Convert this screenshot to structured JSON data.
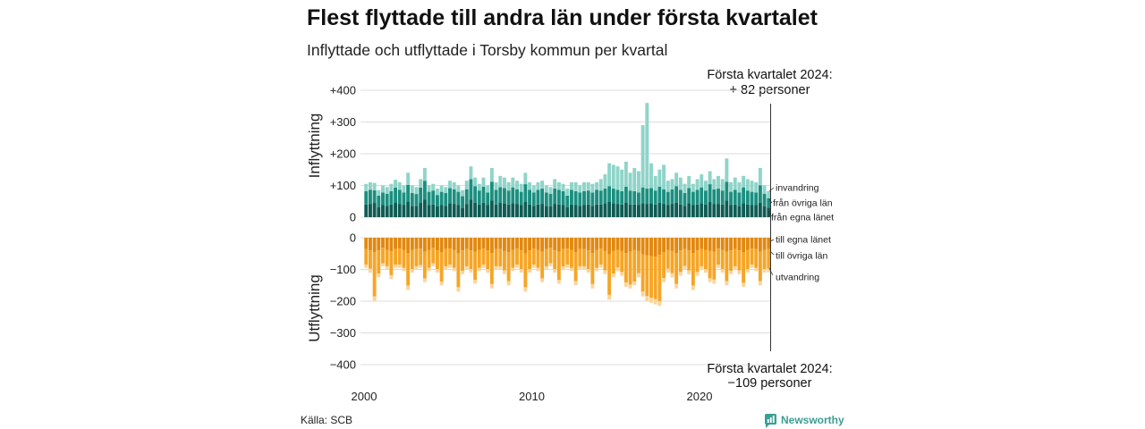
{
  "source": "Källa: SCB",
  "logo": {
    "text": "Newsworthy",
    "icon": "newsworthy-bars-icon",
    "color": "#3a9f92"
  },
  "chart_data": {
    "type": "bar",
    "stacked": true,
    "title": "Flest flyttade till andra län under första kvartalet",
    "subtitle": "Inflyttade och utflyttade i Torsby kommun per kvartal",
    "grid": true,
    "legend": "right",
    "xticks": [
      "2000",
      "2010",
      "2020"
    ],
    "xtick_values": [
      2000,
      2010,
      2020
    ],
    "x": [
      2000,
      2000.25,
      2000.5,
      2000.75,
      2001,
      2001.25,
      2001.5,
      2001.75,
      2002,
      2002.25,
      2002.5,
      2002.75,
      2003,
      2003.25,
      2003.5,
      2003.75,
      2004,
      2004.25,
      2004.5,
      2004.75,
      2005,
      2005.25,
      2005.5,
      2005.75,
      2006,
      2006.25,
      2006.5,
      2006.75,
      2007,
      2007.25,
      2007.5,
      2007.75,
      2008,
      2008.25,
      2008.5,
      2008.75,
      2009,
      2009.25,
      2009.5,
      2009.75,
      2010,
      2010.25,
      2010.5,
      2010.75,
      2011,
      2011.25,
      2011.5,
      2011.75,
      2012,
      2012.25,
      2012.5,
      2012.75,
      2013,
      2013.25,
      2013.5,
      2013.75,
      2014,
      2014.25,
      2014.5,
      2014.75,
      2015,
      2015.25,
      2015.5,
      2015.75,
      2016,
      2016.25,
      2016.5,
      2016.75,
      2017,
      2017.25,
      2017.5,
      2017.75,
      2018,
      2018.25,
      2018.5,
      2018.75,
      2019,
      2019.25,
      2019.5,
      2019.75,
      2020,
      2020.25,
      2020.5,
      2020.75,
      2021,
      2021.25,
      2021.5,
      2021.75,
      2022,
      2022.25,
      2022.5,
      2022.75,
      2023,
      2023.25,
      2023.5,
      2023.75,
      2024
    ],
    "panels": [
      {
        "ylabel": "Inflyttning",
        "ylim": [
          0,
          400
        ],
        "yticks": [
          "0",
          "+100",
          "+200",
          "+300",
          "+400"
        ],
        "ytick_values": [
          0,
          100,
          200,
          300,
          400
        ],
        "annotation": [
          "Första kvartalet 2024:",
          "+ 82 personer"
        ],
        "series": [
          {
            "name": "från egna länet",
            "color": "#0e5c54",
            "values": [
              40,
              42,
              45,
              32,
              38,
              36,
              40,
              45,
              42,
              38,
              50,
              36,
              35,
              45,
              55,
              38,
              40,
              34,
              38,
              36,
              44,
              42,
              38,
              30,
              42,
              55,
              46,
              40,
              46,
              38,
              52,
              40,
              45,
              44,
              40,
              44,
              42,
              38,
              48,
              40,
              36,
              40,
              42,
              36,
              34,
              42,
              40,
              38,
              32,
              40,
              38,
              36,
              38,
              40,
              36,
              40,
              40,
              44,
              48,
              44,
              42,
              40,
              46,
              40,
              40,
              38,
              44,
              42,
              44,
              40,
              46,
              42,
              38,
              42,
              46,
              40,
              36,
              44,
              38,
              40,
              44,
              40,
              48,
              42,
              42,
              40,
              52,
              38,
              40,
              36,
              44,
              40,
              38,
              38,
              46,
              34,
              30
            ]
          },
          {
            "name": "från övriga län",
            "color": "#1b8f80",
            "values": [
              42,
              44,
              40,
              36,
              40,
              38,
              42,
              48,
              44,
              40,
              52,
              40,
              38,
              48,
              60,
              42,
              44,
              36,
              42,
              40,
              48,
              46,
              42,
              36,
              46,
              65,
              52,
              44,
              50,
              40,
              60,
              46,
              50,
              48,
              44,
              50,
              46,
              42,
              56,
              46,
              42,
              46,
              48,
              42,
              40,
              48,
              46,
              44,
              36,
              46,
              44,
              42,
              44,
              44,
              42,
              46,
              44,
              46,
              50,
              46,
              44,
              42,
              50,
              44,
              42,
              40,
              50,
              48,
              48,
              44,
              50,
              46,
              42,
              46,
              52,
              46,
              40,
              48,
              42,
              46,
              50,
              44,
              56,
              46,
              48,
              44,
              60,
              42,
              46,
              42,
              50,
              44,
              42,
              40,
              54,
              40,
              30
            ]
          },
          {
            "name": "invandring",
            "color": "#8fd4c9",
            "values": [
              23,
              24,
              23,
              17,
              22,
              21,
              23,
              25,
              24,
              22,
              38,
              24,
              22,
              27,
              40,
              20,
              21,
              20,
              20,
              19,
              23,
              22,
              20,
              19,
              27,
              40,
              27,
              21,
              29,
              22,
              43,
              24,
              35,
              33,
              26,
              31,
              27,
              25,
              36,
              24,
              22,
              24,
              25,
              22,
              21,
              30,
              24,
              23,
              22,
              24,
              28,
              22,
              28,
              26,
              27,
              24,
              36,
              45,
              72,
              75,
              74,
              68,
              79,
              56,
              73,
              67,
              196,
              270,
              78,
              46,
              54,
              77,
              35,
              32,
              42,
              39,
              29,
              38,
              25,
              34,
              41,
              31,
              41,
              32,
              40,
              36,
              73,
              30,
              39,
              32,
              36,
              36,
              35,
              32,
              55,
              26,
              22
            ]
          }
        ]
      },
      {
        "ylabel": "Utflyttning",
        "ylim": [
          -400,
          0
        ],
        "yticks": [
          "0",
          "−100",
          "−200",
          "−300",
          "−400"
        ],
        "ytick_values": [
          0,
          -100,
          -200,
          -300,
          -400
        ],
        "annotation": [
          "Första kvartalet 2024:",
          "−109 personer"
        ],
        "series": [
          {
            "name": "till egna länet",
            "color": "#e2880f",
            "values": [
              -35,
              -40,
              -45,
              -40,
              -32,
              -38,
              -42,
              -35,
              -34,
              -38,
              -48,
              -38,
              -36,
              -34,
              -44,
              -38,
              -32,
              -40,
              -46,
              -36,
              -34,
              -38,
              -50,
              -40,
              -36,
              -40,
              -44,
              -38,
              -34,
              -40,
              -48,
              -36,
              -36,
              -42,
              -46,
              -38,
              -34,
              -40,
              -50,
              -40,
              -34,
              -38,
              -44,
              -36,
              -32,
              -40,
              -44,
              -36,
              -34,
              -38,
              -46,
              -36,
              -36,
              -40,
              -48,
              -38,
              -34,
              -42,
              -52,
              -42,
              -38,
              -42,
              -48,
              -44,
              -38,
              -42,
              -52,
              -56,
              -58,
              -60,
              -54,
              -46,
              -38,
              -42,
              -48,
              -40,
              -36,
              -40,
              -48,
              -40,
              -36,
              -38,
              -42,
              -44,
              -34,
              -38,
              -44,
              -40,
              -36,
              -40,
              -46,
              -38,
              -34,
              -36,
              -44,
              -38,
              -36
            ]
          },
          {
            "name": "till övriga län",
            "color": "#f6a526",
            "values": [
              -50,
              -58,
              -140,
              -73,
              -49,
              -52,
              -76,
              -50,
              -51,
              -57,
              -103,
              -61,
              -54,
              -52,
              -84,
              -57,
              -49,
              -59,
              -92,
              -54,
              -51,
              -57,
              -106,
              -64,
              -54,
              -59,
              -89,
              -57,
              -51,
              -59,
              -98,
              -54,
              -54,
              -61,
              -91,
              -57,
              -51,
              -59,
              -106,
              -59,
              -51,
              -57,
              -84,
              -54,
              -49,
              -59,
              -89,
              -54,
              -51,
              -57,
              -91,
              -54,
              -54,
              -59,
              -98,
              -57,
              -51,
              -61,
              -128,
              -71,
              -56,
              -66,
              -93,
              -104,
              -100,
              -70,
              -118,
              -128,
              -131,
              -133,
              -146,
              -81,
              -60,
              -70,
              -98,
              -68,
              -53,
              -63,
              -103,
              -68,
              -54,
              -61,
              -86,
              -88,
              -51,
              -61,
              -93,
              -64,
              -54,
              -63,
              -96,
              -61,
              -51,
              -59,
              -93,
              -61,
              -61
            ]
          },
          {
            "name": "utvandring",
            "color": "#fbd59c",
            "values": [
              -10,
              -12,
              -15,
              -12,
              -9,
              -10,
              -12,
              -10,
              -10,
              -10,
              -14,
              -11,
              -10,
              -9,
              -12,
              -10,
              -9,
              -11,
              -12,
              -10,
              -10,
              -10,
              -14,
              -11,
              -10,
              -11,
              -12,
              -10,
              -10,
              -11,
              -14,
              -10,
              -10,
              -12,
              -13,
              -10,
              -10,
              -11,
              -14,
              -11,
              -10,
              -10,
              -12,
              -10,
              -9,
              -11,
              -12,
              -10,
              -10,
              -10,
              -13,
              -10,
              -10,
              -11,
              -14,
              -10,
              -10,
              -12,
              -15,
              -12,
              -11,
              -12,
              -14,
              -12,
              -12,
              -13,
              -15,
              -16,
              -16,
              -17,
              -15,
              -13,
              -12,
              -13,
              -14,
              -12,
              -11,
              -12,
              -14,
              -12,
              -10,
              -11,
              -12,
              -13,
              -10,
              -11,
              -13,
              -11,
              -10,
              -12,
              -13,
              -11,
              -10,
              -10,
              -13,
              -11,
              -12
            ]
          }
        ]
      }
    ]
  }
}
